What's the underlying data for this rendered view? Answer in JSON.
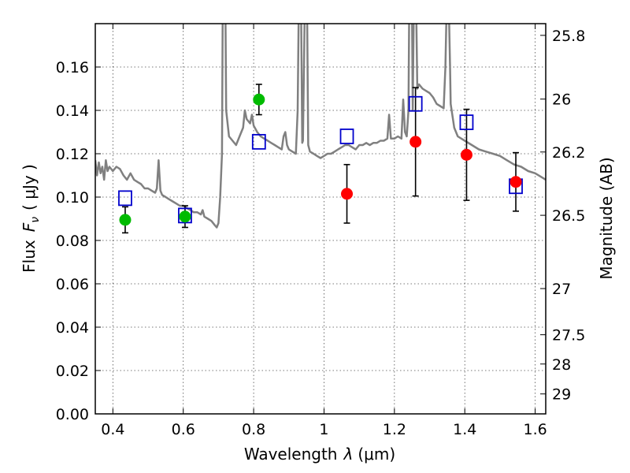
{
  "chart_data": {
    "type": "scatter",
    "xlabel_main": "Wavelength",
    "xlabel_symbol": "λ",
    "xlabel_unit": "(μm)",
    "ylabel_main": "Flux",
    "ylabel_symbol": "F",
    "ylabel_sub": "ν",
    "ylabel_unit": "( μJy )",
    "y2label": "Magnitude (AB)",
    "xlim": [
      0.35,
      1.63
    ],
    "ylim": [
      0.0,
      0.18
    ],
    "xticks": [
      0.4,
      0.6,
      0.8,
      1.0,
      1.2,
      1.4,
      1.6
    ],
    "xtick_labels": [
      "0.4",
      "0.6",
      "0.8",
      "1",
      "1.2",
      "1.4",
      "1.6"
    ],
    "yticks": [
      0.0,
      0.02,
      0.04,
      0.06,
      0.08,
      0.1,
      0.12,
      0.14,
      0.16
    ],
    "ytick_labels": [
      "0.00",
      "0.02",
      "0.04",
      "0.06",
      "0.08",
      "0.10",
      "0.12",
      "0.14",
      "0.16"
    ],
    "y2ticks": [
      {
        "label": "25.8",
        "flux": 0.1746
      },
      {
        "label": "26",
        "flux": 0.1452
      },
      {
        "label": "26.2",
        "flux": 0.1208
      },
      {
        "label": "26.5",
        "flux": 0.0916
      },
      {
        "label": "27",
        "flux": 0.0578
      },
      {
        "label": "27.5",
        "flux": 0.0365
      },
      {
        "label": "28",
        "flux": 0.023
      },
      {
        "label": "29",
        "flux": 0.0092
      }
    ],
    "grid": true,
    "colors": {
      "model": "#808080",
      "green": "#00bb00",
      "red": "#ff0000",
      "square": "#0000cc",
      "errorbar": "#000000"
    },
    "model_spectrum": [
      [
        0.35,
        0.117
      ],
      [
        0.355,
        0.11
      ],
      [
        0.36,
        0.116
      ],
      [
        0.365,
        0.111
      ],
      [
        0.37,
        0.114
      ],
      [
        0.375,
        0.108
      ],
      [
        0.38,
        0.117
      ],
      [
        0.385,
        0.112
      ],
      [
        0.39,
        0.114
      ],
      [
        0.4,
        0.112
      ],
      [
        0.41,
        0.114
      ],
      [
        0.42,
        0.113
      ],
      [
        0.43,
        0.11
      ],
      [
        0.44,
        0.108
      ],
      [
        0.45,
        0.111
      ],
      [
        0.46,
        0.108
      ],
      [
        0.47,
        0.107
      ],
      [
        0.48,
        0.106
      ],
      [
        0.49,
        0.104
      ],
      [
        0.5,
        0.104
      ],
      [
        0.51,
        0.103
      ],
      [
        0.52,
        0.102
      ],
      [
        0.525,
        0.104
      ],
      [
        0.53,
        0.117
      ],
      [
        0.535,
        0.103
      ],
      [
        0.54,
        0.101
      ],
      [
        0.55,
        0.1
      ],
      [
        0.56,
        0.099
      ],
      [
        0.57,
        0.098
      ],
      [
        0.58,
        0.097
      ],
      [
        0.59,
        0.096
      ],
      [
        0.6,
        0.096
      ],
      [
        0.61,
        0.095
      ],
      [
        0.62,
        0.094
      ],
      [
        0.63,
        0.093
      ],
      [
        0.64,
        0.093
      ],
      [
        0.65,
        0.092
      ],
      [
        0.655,
        0.094
      ],
      [
        0.66,
        0.091
      ],
      [
        0.67,
        0.09
      ],
      [
        0.68,
        0.089
      ],
      [
        0.69,
        0.087
      ],
      [
        0.695,
        0.086
      ],
      [
        0.7,
        0.088
      ],
      [
        0.705,
        0.1
      ],
      [
        0.71,
        0.12
      ],
      [
        0.712,
        0.185
      ],
      [
        0.72,
        0.185
      ],
      [
        0.722,
        0.14
      ],
      [
        0.73,
        0.128
      ],
      [
        0.74,
        0.126
      ],
      [
        0.75,
        0.124
      ],
      [
        0.76,
        0.128
      ],
      [
        0.77,
        0.132
      ],
      [
        0.775,
        0.14
      ],
      [
        0.78,
        0.136
      ],
      [
        0.79,
        0.134
      ],
      [
        0.795,
        0.138
      ],
      [
        0.8,
        0.133
      ],
      [
        0.81,
        0.13
      ],
      [
        0.82,
        0.128
      ],
      [
        0.83,
        0.127
      ],
      [
        0.84,
        0.126
      ],
      [
        0.85,
        0.125
      ],
      [
        0.86,
        0.124
      ],
      [
        0.87,
        0.123
      ],
      [
        0.88,
        0.122
      ],
      [
        0.885,
        0.128
      ],
      [
        0.89,
        0.13
      ],
      [
        0.895,
        0.124
      ],
      [
        0.9,
        0.122
      ],
      [
        0.91,
        0.121
      ],
      [
        0.92,
        0.12
      ],
      [
        0.925,
        0.14
      ],
      [
        0.928,
        0.185
      ],
      [
        0.935,
        0.185
      ],
      [
        0.938,
        0.125
      ],
      [
        0.94,
        0.126
      ],
      [
        0.945,
        0.185
      ],
      [
        0.952,
        0.185
      ],
      [
        0.955,
        0.124
      ],
      [
        0.96,
        0.121
      ],
      [
        0.97,
        0.12
      ],
      [
        0.98,
        0.119
      ],
      [
        0.99,
        0.118
      ],
      [
        1.0,
        0.119
      ],
      [
        1.01,
        0.12
      ],
      [
        1.02,
        0.12
      ],
      [
        1.03,
        0.121
      ],
      [
        1.04,
        0.122
      ],
      [
        1.05,
        0.123
      ],
      [
        1.06,
        0.124
      ],
      [
        1.07,
        0.124
      ],
      [
        1.08,
        0.123
      ],
      [
        1.09,
        0.122
      ],
      [
        1.1,
        0.124
      ],
      [
        1.11,
        0.124
      ],
      [
        1.12,
        0.125
      ],
      [
        1.13,
        0.124
      ],
      [
        1.14,
        0.125
      ],
      [
        1.15,
        0.125
      ],
      [
        1.16,
        0.126
      ],
      [
        1.17,
        0.126
      ],
      [
        1.18,
        0.127
      ],
      [
        1.185,
        0.138
      ],
      [
        1.19,
        0.127
      ],
      [
        1.2,
        0.127
      ],
      [
        1.21,
        0.128
      ],
      [
        1.22,
        0.127
      ],
      [
        1.225,
        0.145
      ],
      [
        1.23,
        0.13
      ],
      [
        1.235,
        0.128
      ],
      [
        1.24,
        0.14
      ],
      [
        1.242,
        0.185
      ],
      [
        1.25,
        0.185
      ],
      [
        1.252,
        0.14
      ],
      [
        1.255,
        0.185
      ],
      [
        1.262,
        0.185
      ],
      [
        1.265,
        0.15
      ],
      [
        1.27,
        0.152
      ],
      [
        1.28,
        0.15
      ],
      [
        1.29,
        0.149
      ],
      [
        1.3,
        0.148
      ],
      [
        1.31,
        0.146
      ],
      [
        1.32,
        0.143
      ],
      [
        1.33,
        0.142
      ],
      [
        1.34,
        0.141
      ],
      [
        1.345,
        0.16
      ],
      [
        1.348,
        0.185
      ],
      [
        1.355,
        0.185
      ],
      [
        1.358,
        0.16
      ],
      [
        1.36,
        0.143
      ],
      [
        1.37,
        0.132
      ],
      [
        1.38,
        0.128
      ],
      [
        1.39,
        0.127
      ],
      [
        1.4,
        0.126
      ],
      [
        1.42,
        0.124
      ],
      [
        1.44,
        0.122
      ],
      [
        1.46,
        0.121
      ],
      [
        1.48,
        0.12
      ],
      [
        1.5,
        0.119
      ],
      [
        1.52,
        0.117
      ],
      [
        1.54,
        0.115
      ],
      [
        1.56,
        0.114
      ],
      [
        1.58,
        0.112
      ],
      [
        1.6,
        0.111
      ],
      [
        1.62,
        0.109
      ],
      [
        1.63,
        0.108
      ]
    ],
    "green_points": [
      {
        "x": 0.435,
        "y": 0.0895,
        "err": 0.006
      },
      {
        "x": 0.605,
        "y": 0.091,
        "err": 0.005
      },
      {
        "x": 0.815,
        "y": 0.145,
        "err": 0.007
      }
    ],
    "red_points": [
      {
        "x": 1.065,
        "y": 0.1015,
        "err": 0.0135
      },
      {
        "x": 1.26,
        "y": 0.1255,
        "err": 0.025
      },
      {
        "x": 1.405,
        "y": 0.1195,
        "err": 0.021
      },
      {
        "x": 1.545,
        "y": 0.107,
        "err": 0.0135
      }
    ],
    "model_squares": [
      {
        "x": 0.435,
        "y": 0.0995
      },
      {
        "x": 0.605,
        "y": 0.0915
      },
      {
        "x": 0.815,
        "y": 0.1255
      },
      {
        "x": 1.065,
        "y": 0.128
      },
      {
        "x": 1.26,
        "y": 0.143
      },
      {
        "x": 1.405,
        "y": 0.1345
      },
      {
        "x": 1.545,
        "y": 0.105
      }
    ]
  }
}
